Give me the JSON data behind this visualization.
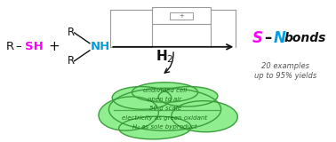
{
  "bg_color": "#ffffff",
  "color_S": "#ff00ff",
  "color_N": "#009fe3",
  "color_black": "#111111",
  "color_green_fill": "#90ee90",
  "color_green_border": "#3a9e3a",
  "color_green_text": "#1a6e1a",
  "green_lines": [
    "undivided cell",
    "open to air",
    "50 g scale",
    "electricity as green oxidant",
    "H₂ as sole byproduct"
  ],
  "examples_text": "20 examples\nup to 95% yields"
}
